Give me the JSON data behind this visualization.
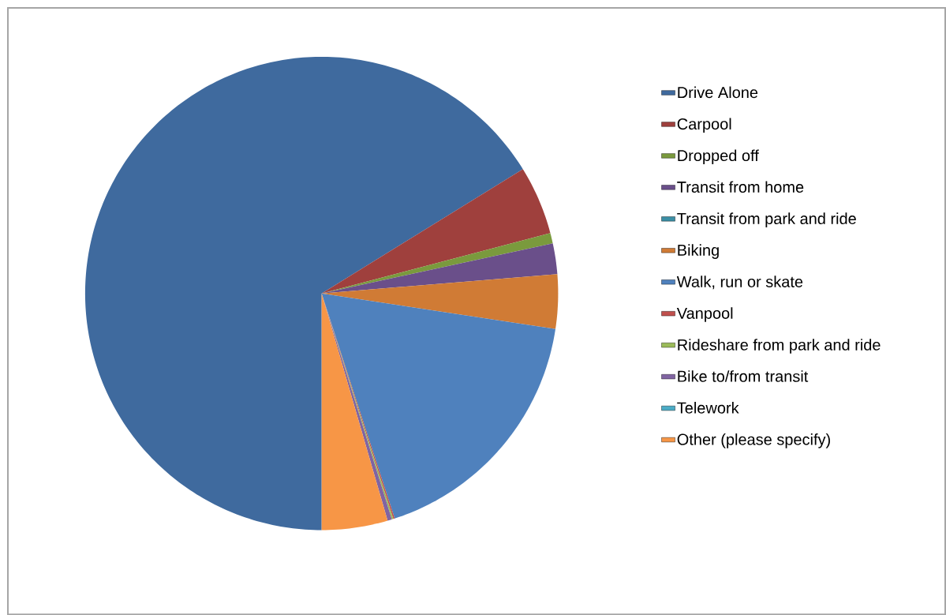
{
  "chart_data": {
    "type": "pie",
    "legend": "right",
    "categories": [
      "Drive Alone",
      "Carpool",
      "Dropped off",
      "Transit from home",
      "Transit from park and ride",
      "Biking",
      "Walk, run or skate",
      "Vanpool",
      "Rideshare from park and ride",
      "Bike to/from transit",
      "Telework",
      "Other (please specify)"
    ],
    "values": [
      66.2,
      4.7,
      0.7,
      2.1,
      0,
      3.7,
      17.6,
      0.1,
      0.1,
      0.3,
      0,
      4.5
    ],
    "colors": [
      "#3f6a9e",
      "#9f403d",
      "#7a9a3d",
      "#6a4f8a",
      "#3b8fa5",
      "#d07b35",
      "#4f81bd",
      "#c0504d",
      "#9bbb59",
      "#8064a2",
      "#4bacc6",
      "#f79646"
    ]
  }
}
